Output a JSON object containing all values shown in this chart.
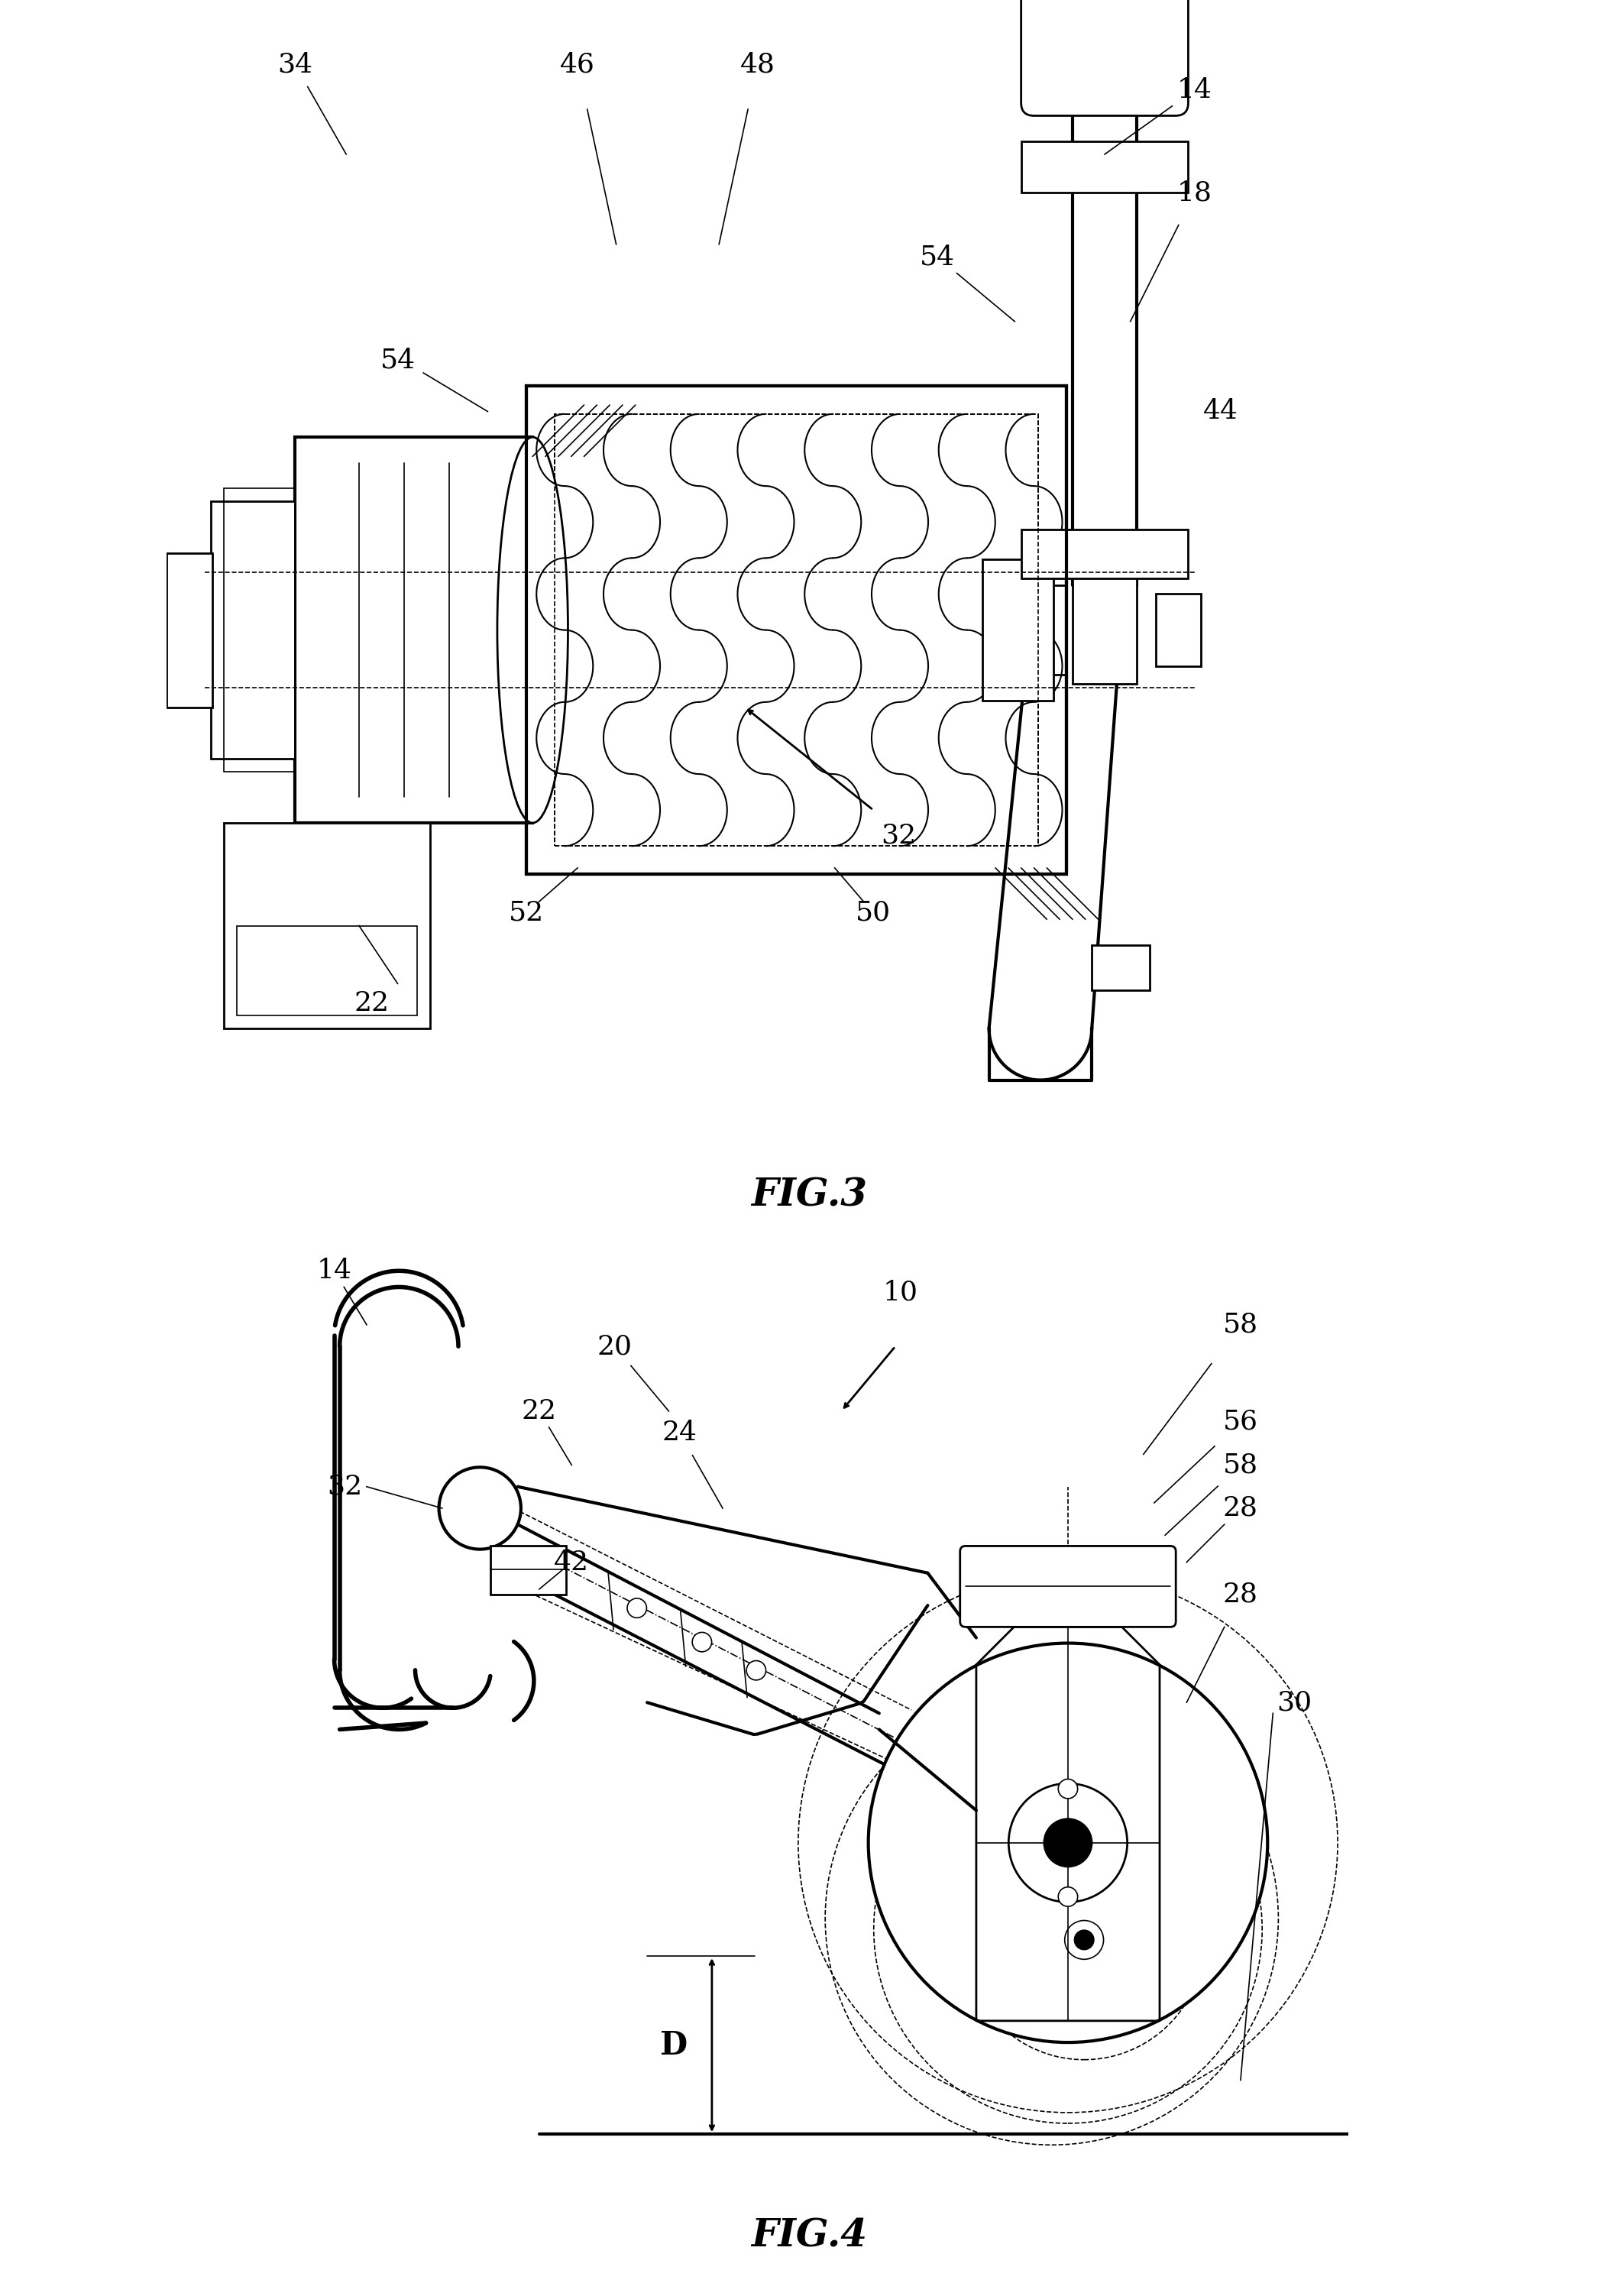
{
  "background_color": "#ffffff",
  "line_color": "#000000",
  "fig3_label": "FIG.3",
  "fig4_label": "FIG.4",
  "lw_thin": 1.2,
  "lw_med": 2.0,
  "lw_thick": 3.0
}
